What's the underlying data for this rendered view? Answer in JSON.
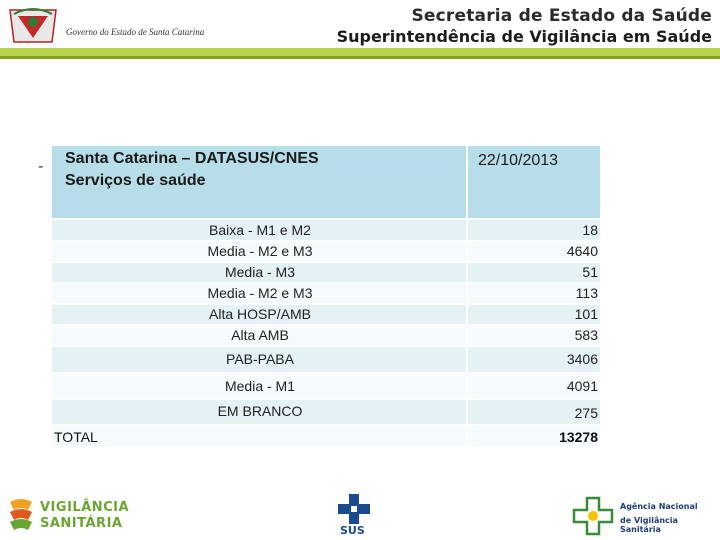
{
  "header": {
    "government_text": "Governo do Estado de Santa Catarina",
    "secretaria_title": "Secretaria de Estado da Saúde",
    "superintendencia_title": "Superintendência de Vigilância em Saúde"
  },
  "bullet": "-",
  "table": {
    "title_line1": "Santa Catarina – DATASUS/CNES",
    "title_line2": "Serviços de saúde",
    "date": "22/10/2013",
    "rows": [
      {
        "label": "Baixa - M1 e M2",
        "value": "18"
      },
      {
        "label": "Media - M2 e M3",
        "value": "4640"
      },
      {
        "label": "Media - M3",
        "value": "51"
      },
      {
        "label": "Media - M2 e M3",
        "value": "113"
      },
      {
        "label": "Alta HOSP/AMB",
        "value": "101"
      },
      {
        "label": "Alta AMB",
        "value": "583"
      },
      {
        "label": "PAB-PABA",
        "value": "3406"
      },
      {
        "label": "Media - M1",
        "value": "4091"
      },
      {
        "label": "EM BRANCO",
        "value": "275"
      }
    ],
    "total_label": "TOTAL",
    "total_value": "13278"
  },
  "footer": {
    "vigilancia_line1": "VIGILÂNCIA",
    "vigilancia_line2": "SANITÁRIA",
    "sus_label": "SUS",
    "anvisa_line1": "Agência Nacional",
    "anvisa_line2": "de Vigilância Sanitária"
  }
}
